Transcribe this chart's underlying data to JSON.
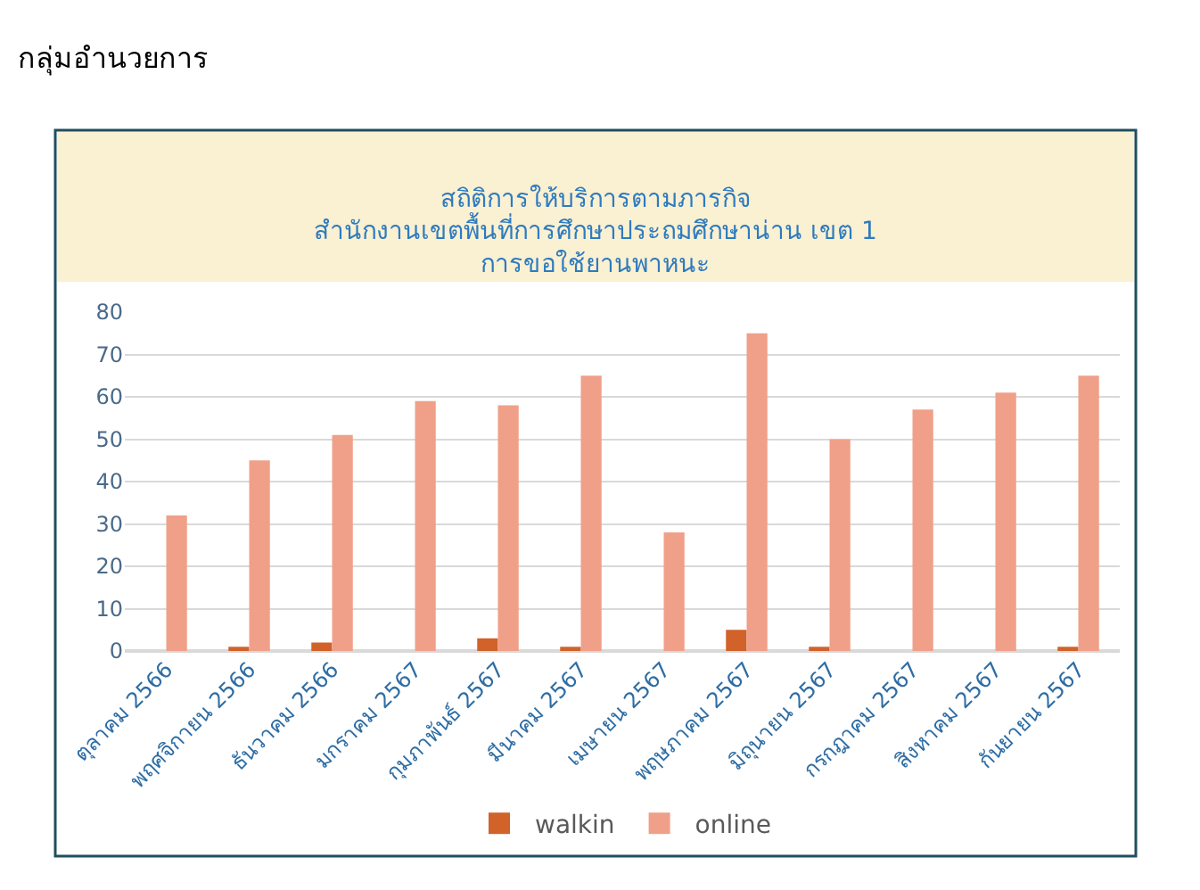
{
  "chart_data": {
    "type": "bar",
    "title": "สถิติการให้บริการตามภารกิจ\nสำนักงานเขตพื้นที่การศึกษาประถมศึกษาน่าน เขต 1\nการขอใช้ยานพาหนะ",
    "annotations": [
      "กลุ่มอำนวยการ"
    ],
    "categories": [
      "ตุลาคม 2566",
      "พฤศจิกายน 2566",
      "ธันวาคม 2566",
      "มกราคม 2567",
      "กุมภาพันธ์ 2567",
      "มีนาคม 2567",
      "เมษายน 2567",
      "พฤษภาคม 2567",
      "มิถุนายน 2567",
      "กรกฎาคม 2567",
      "สิงหาคม 2567",
      "กันยายน 2567"
    ],
    "series": [
      {
        "name": "walkin",
        "color": "#d0622a",
        "values": [
          0,
          1,
          2,
          0,
          3,
          1,
          0,
          5,
          1,
          0,
          0,
          1
        ]
      },
      {
        "name": "online",
        "color": "#f0a088",
        "values": [
          32,
          45,
          51,
          59,
          58,
          65,
          28,
          75,
          50,
          57,
          61,
          65
        ]
      }
    ],
    "ylim": [
      0,
      80
    ],
    "yticks": [
      0,
      10,
      20,
      30,
      40,
      50,
      60,
      70,
      80
    ],
    "grid": "y",
    "legend": "bottom"
  }
}
